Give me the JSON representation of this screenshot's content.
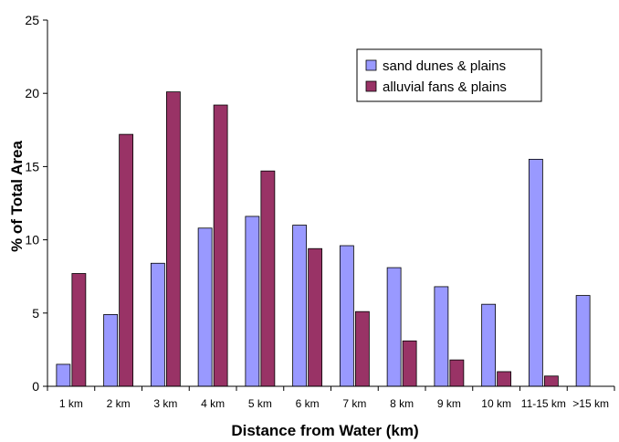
{
  "chart_data": {
    "type": "bar",
    "categories": [
      "1 km",
      "2 km",
      "3 km",
      "4 km",
      "5 km",
      "6 km",
      "7 km",
      "8 km",
      "9 km",
      "10 km",
      "11-15 km",
      ">15 km"
    ],
    "series": [
      {
        "name": "sand dunes & plains",
        "color": "#9999ff",
        "values": [
          1.5,
          4.9,
          8.4,
          10.8,
          11.6,
          11.0,
          9.6,
          8.1,
          6.8,
          5.6,
          15.5,
          6.2
        ]
      },
      {
        "name": "alluvial fans & plains",
        "color": "#993366",
        "values": [
          7.7,
          17.2,
          20.1,
          19.2,
          14.7,
          9.4,
          5.1,
          3.1,
          1.8,
          1.0,
          0.7,
          0
        ]
      }
    ],
    "xlabel": "Distance from Water (km)",
    "ylabel": "% of Total Area",
    "ylim": [
      0,
      25
    ],
    "yticks": [
      0,
      5,
      10,
      15,
      20,
      25
    ],
    "grid": false,
    "legend_position": "top-right"
  }
}
